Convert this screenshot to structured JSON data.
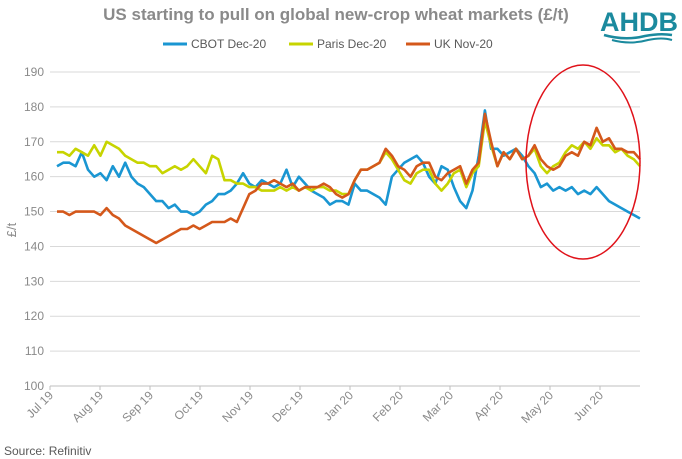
{
  "chart_data": {
    "type": "line",
    "title": "US starting to pull on global new-crop wheat markets (£/t)",
    "ylabel": "£/t",
    "xlabel": "",
    "ylim": [
      100,
      190
    ],
    "yticks": [
      100,
      110,
      120,
      130,
      140,
      150,
      160,
      170,
      180,
      190
    ],
    "xticks": [
      "Jul 19",
      "Aug 19",
      "Sep 19",
      "Oct 19",
      "Nov 19",
      "Dec 19",
      "Jan 20",
      "Feb 20",
      "Mar 20",
      "Apr 20",
      "May 20",
      "Jun 20"
    ],
    "grid": true,
    "legend_position": "top",
    "series": [
      {
        "name": "CBOT Dec-20",
        "color": "#1a96d2",
        "values": [
          163,
          164,
          164,
          163,
          167,
          162,
          160,
          161,
          159,
          163,
          160,
          164,
          160,
          158,
          157,
          155,
          153,
          153,
          151,
          152,
          150,
          150,
          149,
          150,
          152,
          153,
          155,
          155,
          156,
          158,
          161,
          158,
          157,
          159,
          158,
          157,
          158,
          162,
          157,
          160,
          158,
          156,
          155,
          154,
          152,
          153,
          153,
          152,
          158,
          156,
          156,
          155,
          154,
          152,
          160,
          162,
          164,
          165,
          166,
          164,
          160,
          158,
          163,
          162,
          157,
          153,
          151,
          156,
          166,
          179,
          168,
          168,
          166,
          167,
          168,
          166,
          163,
          161,
          157,
          158,
          156,
          157,
          156,
          157,
          155,
          156,
          155,
          157,
          155,
          153,
          152,
          151,
          150,
          149,
          148
        ]
      },
      {
        "name": "Paris Dec-20",
        "color": "#c7d400",
        "values": [
          167,
          167,
          166,
          168,
          167,
          166,
          169,
          166,
          170,
          169,
          168,
          166,
          165,
          164,
          164,
          163,
          163,
          161,
          162,
          163,
          162,
          163,
          165,
          163,
          161,
          166,
          165,
          159,
          159,
          158,
          158,
          157,
          157,
          156,
          156,
          156,
          157,
          156,
          157,
          156,
          157,
          156,
          157,
          157,
          156,
          156,
          155,
          155,
          159,
          162,
          162,
          163,
          164,
          167,
          165,
          162,
          159,
          158,
          161,
          162,
          162,
          158,
          156,
          158,
          161,
          162,
          157,
          161,
          163,
          176,
          169,
          163,
          167,
          165,
          168,
          165,
          166,
          168,
          163,
          161,
          163,
          164,
          167,
          169,
          168,
          170,
          168,
          171,
          169,
          169,
          167,
          168,
          166,
          165,
          163
        ]
      },
      {
        "name": "UK Nov-20",
        "color": "#d4581b",
        "values": [
          150,
          150,
          149,
          150,
          150,
          150,
          150,
          149,
          151,
          149,
          148,
          146,
          145,
          144,
          143,
          142,
          141,
          142,
          143,
          144,
          145,
          145,
          146,
          145,
          146,
          147,
          147,
          147,
          148,
          147,
          151,
          155,
          156,
          158,
          158,
          159,
          158,
          157,
          158,
          156,
          157,
          157,
          157,
          158,
          157,
          155,
          154,
          155,
          159,
          162,
          162,
          163,
          164,
          168,
          166,
          163,
          162,
          160,
          163,
          164,
          164,
          160,
          159,
          161,
          162,
          163,
          158,
          162,
          164,
          178,
          170,
          163,
          167,
          165,
          168,
          165,
          166,
          169,
          165,
          163,
          162,
          163,
          166,
          167,
          166,
          170,
          169,
          174,
          170,
          171,
          168,
          168,
          167,
          167,
          165
        ]
      }
    ]
  },
  "logo": {
    "text": "AHDB",
    "color": "#1b8a9e"
  },
  "source": "Source: Refinitiv",
  "annotation": {
    "type": "circle",
    "color": "#e0121a"
  }
}
